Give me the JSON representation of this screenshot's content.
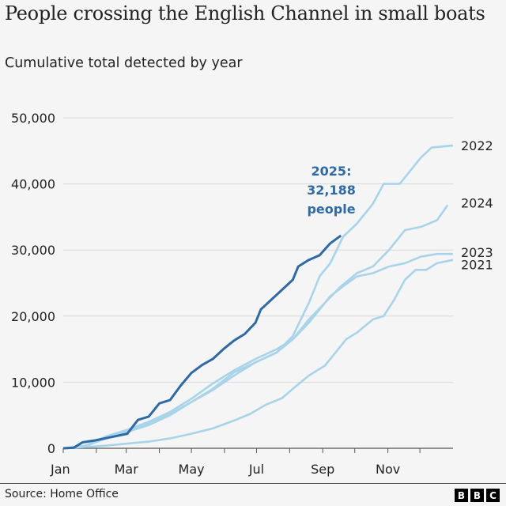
{
  "header": {
    "title": "People crossing the English Channel in small boats",
    "subtitle": "Cumulative total detected by year"
  },
  "footer": {
    "source": "Source: Home Office",
    "logo": [
      "B",
      "B",
      "C"
    ]
  },
  "colors": {
    "highlight": "#2e6aa6",
    "other_years": "#a8d4ea",
    "grid": "#d9d9d9",
    "axis": "#555555"
  },
  "chart_data": {
    "type": "line",
    "title": "People crossing the English Channel in small boats",
    "subtitle": "Cumulative total detected by year",
    "xlabel": "",
    "ylabel": "",
    "x_unit": "day of year",
    "xlim": [
      0,
      365
    ],
    "ylim": [
      0,
      50000
    ],
    "grid": true,
    "y_ticks": [
      0,
      10000,
      20000,
      30000,
      40000,
      50000
    ],
    "y_tick_labels": [
      "0",
      "10,000",
      "20,000",
      "30,000",
      "40,000",
      "50,000"
    ],
    "x_tick_labels": [
      "Jan",
      "Mar",
      "May",
      "Jul",
      "Sep",
      "Nov"
    ],
    "x_tick_days": [
      0,
      59,
      120,
      181,
      243,
      304
    ],
    "minor_tick_days": [
      31,
      90,
      151,
      212,
      273,
      334
    ],
    "annotation": {
      "lines": [
        "2025:",
        "32,188",
        "people"
      ]
    },
    "series": [
      {
        "name": "2021",
        "label": "2021",
        "highlight": false,
        "points": [
          [
            0,
            0
          ],
          [
            20,
            200
          ],
          [
            40,
            400
          ],
          [
            60,
            700
          ],
          [
            80,
            1000
          ],
          [
            100,
            1500
          ],
          [
            120,
            2200
          ],
          [
            140,
            3000
          ],
          [
            160,
            4200
          ],
          [
            175,
            5200
          ],
          [
            190,
            6600
          ],
          [
            205,
            7600
          ],
          [
            215,
            9000
          ],
          [
            230,
            11000
          ],
          [
            245,
            12500
          ],
          [
            255,
            14500
          ],
          [
            265,
            16500
          ],
          [
            275,
            17500
          ],
          [
            290,
            19500
          ],
          [
            300,
            20000
          ],
          [
            310,
            22500
          ],
          [
            320,
            25500
          ],
          [
            330,
            27000
          ],
          [
            340,
            27000
          ],
          [
            350,
            28000
          ],
          [
            365,
            28500
          ]
        ]
      },
      {
        "name": "2022",
        "label": "2022",
        "highlight": false,
        "points": [
          [
            0,
            0
          ],
          [
            20,
            400
          ],
          [
            40,
            1500
          ],
          [
            60,
            2500
          ],
          [
            80,
            3500
          ],
          [
            100,
            5000
          ],
          [
            120,
            7000
          ],
          [
            140,
            9000
          ],
          [
            160,
            11500
          ],
          [
            180,
            13000
          ],
          [
            200,
            14500
          ],
          [
            215,
            17000
          ],
          [
            230,
            22000
          ],
          [
            240,
            26000
          ],
          [
            250,
            28000
          ],
          [
            262,
            32000
          ],
          [
            275,
            34000
          ],
          [
            290,
            37000
          ],
          [
            300,
            40000
          ],
          [
            315,
            40000
          ],
          [
            325,
            42000
          ],
          [
            335,
            44000
          ],
          [
            345,
            45500
          ],
          [
            365,
            45800
          ]
        ]
      },
      {
        "name": "2023",
        "label": "2023",
        "highlight": false,
        "points": [
          [
            0,
            0
          ],
          [
            20,
            300
          ],
          [
            40,
            1500
          ],
          [
            60,
            2800
          ],
          [
            80,
            3800
          ],
          [
            100,
            5200
          ],
          [
            120,
            7000
          ],
          [
            140,
            8800
          ],
          [
            160,
            11000
          ],
          [
            180,
            13000
          ],
          [
            200,
            14500
          ],
          [
            215,
            16500
          ],
          [
            230,
            19000
          ],
          [
            240,
            21000
          ],
          [
            250,
            23000
          ],
          [
            262,
            24500
          ],
          [
            275,
            26000
          ],
          [
            290,
            26500
          ],
          [
            305,
            27500
          ],
          [
            320,
            28000
          ],
          [
            335,
            29000
          ],
          [
            350,
            29400
          ],
          [
            365,
            29400
          ]
        ]
      },
      {
        "name": "2024",
        "label": "2024",
        "highlight": false,
        "points": [
          [
            0,
            0
          ],
          [
            20,
            300
          ],
          [
            40,
            1800
          ],
          [
            60,
            2800
          ],
          [
            80,
            4000
          ],
          [
            100,
            5500
          ],
          [
            120,
            7500
          ],
          [
            140,
            9800
          ],
          [
            160,
            11800
          ],
          [
            180,
            13500
          ],
          [
            200,
            15000
          ],
          [
            215,
            16500
          ],
          [
            230,
            19500
          ],
          [
            245,
            22000
          ],
          [
            260,
            24500
          ],
          [
            275,
            26500
          ],
          [
            290,
            27500
          ],
          [
            305,
            30000
          ],
          [
            320,
            33000
          ],
          [
            335,
            33500
          ],
          [
            350,
            34500
          ],
          [
            360,
            36800
          ]
        ]
      },
      {
        "name": "2025",
        "label": "",
        "highlight": true,
        "points": [
          [
            0,
            0
          ],
          [
            10,
            100
          ],
          [
            18,
            900
          ],
          [
            30,
            1200
          ],
          [
            45,
            1700
          ],
          [
            60,
            2200
          ],
          [
            70,
            4300
          ],
          [
            80,
            4800
          ],
          [
            90,
            6800
          ],
          [
            100,
            7300
          ],
          [
            110,
            9500
          ],
          [
            120,
            11400
          ],
          [
            130,
            12600
          ],
          [
            140,
            13500
          ],
          [
            150,
            15000
          ],
          [
            160,
            16300
          ],
          [
            170,
            17300
          ],
          [
            180,
            19000
          ],
          [
            185,
            21000
          ],
          [
            195,
            22500
          ],
          [
            205,
            24000
          ],
          [
            215,
            25500
          ],
          [
            220,
            27500
          ],
          [
            230,
            28500
          ],
          [
            240,
            29200
          ],
          [
            250,
            31000
          ],
          [
            260,
            32188
          ]
        ]
      }
    ]
  }
}
